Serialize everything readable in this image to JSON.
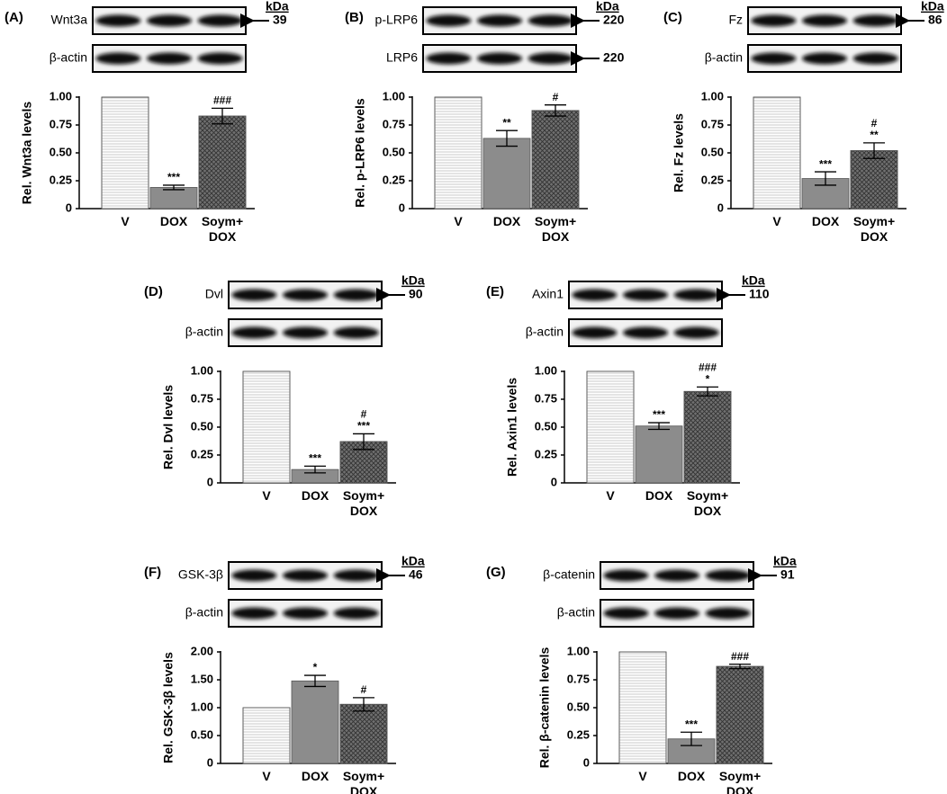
{
  "chart_data": [
    {
      "type": "bar",
      "panel": "(A)",
      "kda_header": "kDa",
      "blot": [
        {
          "label": "Wnt3a",
          "kda": 39
        },
        {
          "label": "β-actin"
        }
      ],
      "ylabel": "Rel. Wnt3a levels",
      "categories": [
        "V",
        "DOX",
        "Soym+\nDOX"
      ],
      "values": [
        1.0,
        0.19,
        0.83
      ],
      "errors": [
        null,
        0.02,
        0.07
      ],
      "annotations": [
        [],
        [
          "***"
        ],
        [
          "###"
        ]
      ],
      "colors": [
        "#ffffff",
        "#8c8c8c",
        "#707070"
      ],
      "ylim": [
        0,
        1
      ],
      "yticks": [
        0,
        0.25,
        {
          "value": 0.5,
          "label": "0.50"
        },
        0.75,
        {
          "value": 1,
          "label": "1.00"
        }
      ]
    },
    {
      "type": "bar",
      "panel": "(B)",
      "kda_header": "kDa",
      "blot": [
        {
          "label": "p-LRP6",
          "kda": 220
        },
        {
          "label": "LRP6",
          "kda": 220
        }
      ],
      "ylabel": "Rel. p-LRP6 levels",
      "categories": [
        "V",
        "DOX",
        "Soym+\nDOX"
      ],
      "values": [
        1.0,
        0.63,
        0.88
      ],
      "errors": [
        null,
        0.07,
        0.05
      ],
      "annotations": [
        [],
        [
          "**"
        ],
        [
          "#"
        ]
      ],
      "colors": [
        "#ffffff",
        "#8c8c8c",
        "#707070"
      ],
      "ylim": [
        0,
        1
      ],
      "yticks": [
        0,
        0.25,
        {
          "value": 0.5,
          "label": "0.50"
        },
        0.75,
        {
          "value": 1,
          "label": "1.00"
        }
      ]
    },
    {
      "type": "bar",
      "panel": "(C)",
      "kda_header": "kDa",
      "blot": [
        {
          "label": "Fz",
          "kda": 86
        },
        {
          "label": "β-actin"
        }
      ],
      "ylabel": "Rel. Fz levels",
      "categories": [
        "V",
        "DOX",
        "Soym+\nDOX"
      ],
      "values": [
        1.0,
        0.27,
        0.52
      ],
      "errors": [
        null,
        0.06,
        0.07
      ],
      "annotations": [
        [],
        [
          "***"
        ],
        [
          "#",
          "**"
        ]
      ],
      "colors": [
        "#ffffff",
        "#8c8c8c",
        "#707070"
      ],
      "ylim": [
        0,
        1
      ],
      "yticks": [
        0,
        0.25,
        {
          "value": 0.5,
          "label": "0.50"
        },
        0.75,
        {
          "value": 1,
          "label": "1.00"
        }
      ]
    },
    {
      "type": "bar",
      "panel": "(D)",
      "kda_header": "kDa",
      "blot": [
        {
          "label": "Dvl",
          "kda": 90
        },
        {
          "label": "β-actin"
        }
      ],
      "ylabel": "Rel. Dvl levels",
      "categories": [
        "V",
        "DOX",
        "Soym+\nDOX"
      ],
      "values": [
        1.0,
        0.12,
        0.37
      ],
      "errors": [
        null,
        0.03,
        0.07
      ],
      "annotations": [
        [],
        [
          "***"
        ],
        [
          "#",
          "***"
        ]
      ],
      "colors": [
        "#ffffff",
        "#8c8c8c",
        "#707070"
      ],
      "ylim": [
        0,
        1
      ],
      "yticks": [
        0,
        0.25,
        {
          "value": 0.5,
          "label": "0.50"
        },
        0.75,
        {
          "value": 1,
          "label": "1.00"
        }
      ]
    },
    {
      "type": "bar",
      "panel": "(E)",
      "kda_header": "kDa",
      "blot": [
        {
          "label": "Axin1",
          "kda": 110
        },
        {
          "label": "β-actin"
        }
      ],
      "ylabel": "Rel. Axin1 levels",
      "categories": [
        "V",
        "DOX",
        "Soym+\nDOX"
      ],
      "values": [
        1.0,
        0.51,
        0.82
      ],
      "errors": [
        null,
        0.03,
        0.04
      ],
      "annotations": [
        [],
        [
          "***"
        ],
        [
          "###",
          "*"
        ]
      ],
      "colors": [
        "#ffffff",
        "#8c8c8c",
        "#707070"
      ],
      "ylim": [
        0,
        1
      ],
      "yticks": [
        0,
        0.25,
        {
          "value": 0.5,
          "label": "0.50"
        },
        0.75,
        {
          "value": 1,
          "label": "1.00"
        }
      ]
    },
    {
      "type": "bar",
      "panel": "(F)",
      "kda_header": "kDa",
      "blot": [
        {
          "label": "GSK-3β",
          "kda": 46
        },
        {
          "label": "β-actin"
        }
      ],
      "ylabel": "Rel. GSK-3β levels",
      "categories": [
        "V",
        "DOX",
        "Soym+\nDOX"
      ],
      "values": [
        1.0,
        1.48,
        1.06
      ],
      "errors": [
        null,
        0.1,
        0.12
      ],
      "annotations": [
        [],
        [
          "*"
        ],
        [
          "#"
        ]
      ],
      "colors": [
        "#ffffff",
        "#8c8c8c",
        "#707070"
      ],
      "ylim": [
        0,
        2
      ],
      "yticks": [
        0,
        {
          "value": 0.5,
          "label": "0.50"
        },
        {
          "value": 1,
          "label": "1.00"
        },
        {
          "value": 1.5,
          "label": "1.50"
        },
        {
          "value": 2,
          "label": "2.00"
        }
      ]
    },
    {
      "type": "bar",
      "panel": "(G)",
      "kda_header": "kDa",
      "blot": [
        {
          "label": "β-catenin",
          "kda": 91
        },
        {
          "label": "β-actin"
        }
      ],
      "ylabel": "Rel. β-catenin levels",
      "categories": [
        "V",
        "DOX",
        "Soym+\nDOX"
      ],
      "values": [
        1.0,
        0.22,
        0.87
      ],
      "errors": [
        null,
        0.06,
        0.02
      ],
      "annotations": [
        [],
        [
          "***"
        ],
        [
          "###"
        ]
      ],
      "colors": [
        "#ffffff",
        "#8c8c8c",
        "#707070"
      ],
      "ylim": [
        0,
        1
      ],
      "yticks": [
        0,
        0.25,
        {
          "value": 0.5,
          "label": "0.50"
        },
        0.75,
        {
          "value": 1,
          "label": "1.00"
        }
      ]
    }
  ]
}
